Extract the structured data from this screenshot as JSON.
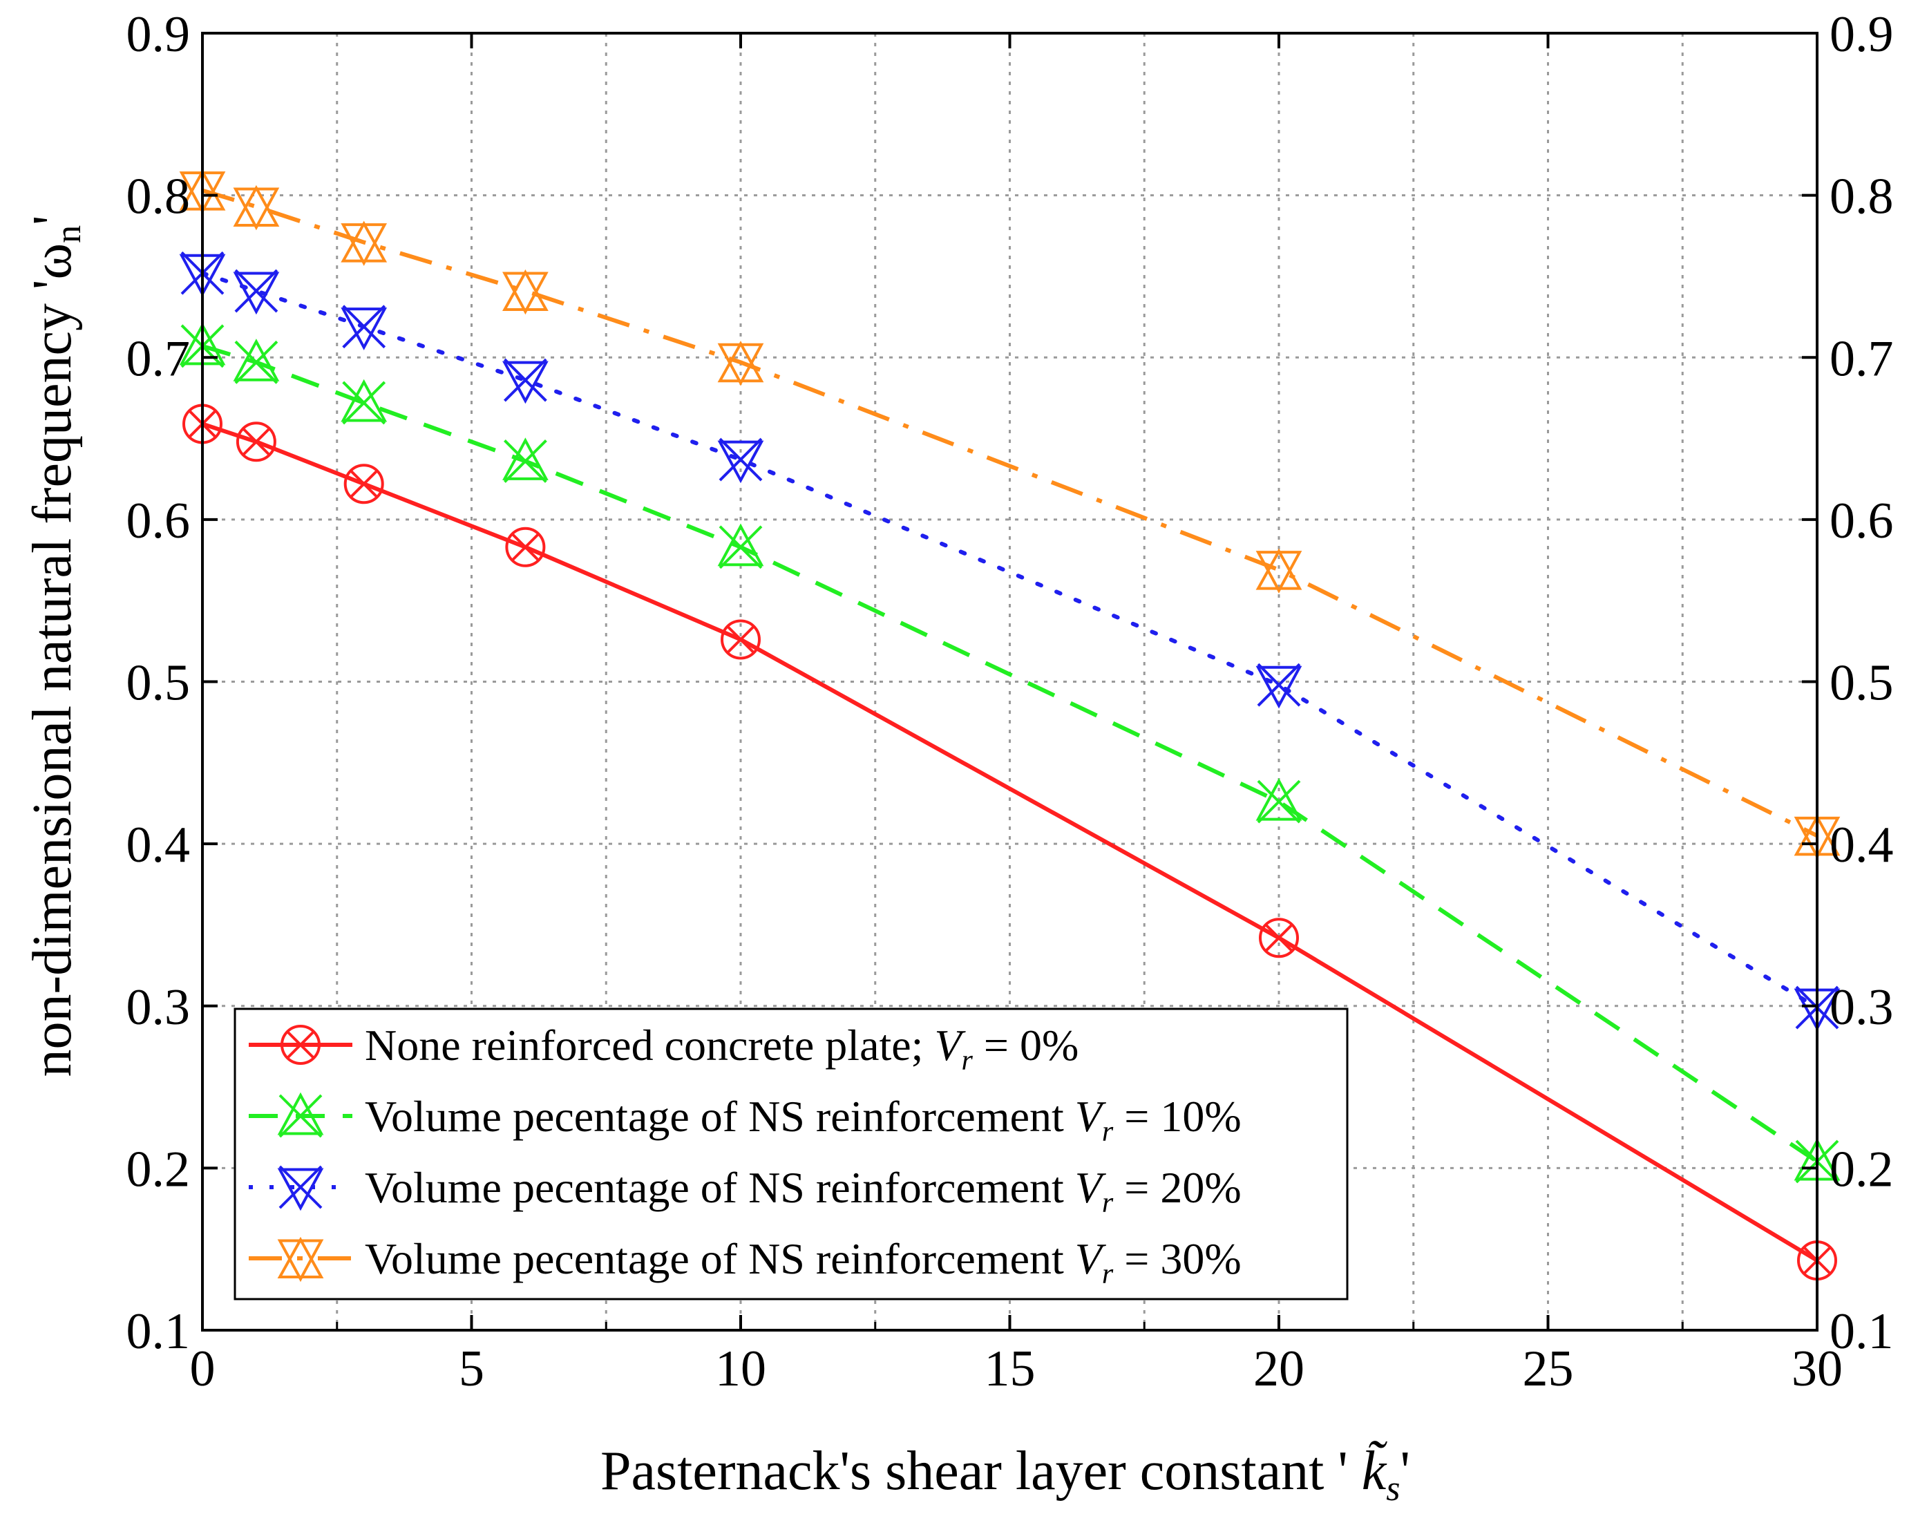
{
  "chart_data": {
    "type": "line",
    "title": "",
    "xlabel": "Pasternack's shear layer constant ' k̃s'",
    "xlabel_parts": {
      "prefix": "Pasternack's shear layer constant ' ",
      "symbol": "k̃",
      "subscript": "s",
      "suffix": "'"
    },
    "ylabel": "non-dimensional natural frequency 'ωn'",
    "ylabel_parts": {
      "prefix": "non-dimensional natural frequency '",
      "symbol": "ω",
      "subscript": "n",
      "suffix": "'"
    },
    "xlim": [
      0,
      30
    ],
    "ylim": [
      0.1,
      0.9
    ],
    "x_ticks": [
      0,
      5,
      10,
      15,
      20,
      25,
      30
    ],
    "x_tick_labels": [
      "0",
      "5",
      "10",
      "15",
      "20",
      "25",
      "30"
    ],
    "y_ticks": [
      0.1,
      0.2,
      0.3,
      0.4,
      0.5,
      0.6,
      0.7,
      0.8,
      0.9
    ],
    "y_tick_labels": [
      "0.1",
      "0.2",
      "0.3",
      "0.4",
      "0.5",
      "0.6",
      "0.7",
      "0.8",
      "0.9"
    ],
    "x_minor_grid": [
      2.5,
      7.5,
      12.5,
      17.5,
      22.5,
      27.5
    ],
    "grid": true,
    "right_axis_mirrored": true,
    "legend_position": "bottom-left",
    "x": [
      0,
      1,
      3,
      6,
      10,
      20,
      30
    ],
    "series": [
      {
        "name": "None reinforced concrete plate; Vr = 0%",
        "name_parts": {
          "prefix": "None reinforced concrete plate; ",
          "var": "V",
          "sub": "r",
          "suffix": " = 0%"
        },
        "values": [
          0.659,
          0.648,
          0.622,
          0.583,
          0.526,
          0.342,
          0.143
        ],
        "color": "#ff2020",
        "line_style": "solid",
        "marker": "circle-x"
      },
      {
        "name": "Volume pecentage of NS reinforcement Vr = 10%",
        "name_parts": {
          "prefix": "Volume pecentage of NS reinforcement ",
          "var": "V",
          "sub": "r",
          "suffix": " = 10%"
        },
        "values": [
          0.707,
          0.697,
          0.672,
          0.636,
          0.583,
          0.426,
          0.204
        ],
        "color": "#22ee22",
        "line_style": "dash",
        "marker": "triangle-up-x"
      },
      {
        "name": "Volume pecentage of NS reinforcement Vr = 20%",
        "name_parts": {
          "prefix": "Volume pecentage of NS reinforcement ",
          "var": "V",
          "sub": "r",
          "suffix": " = 20%"
        },
        "values": [
          0.752,
          0.741,
          0.719,
          0.686,
          0.637,
          0.498,
          0.299
        ],
        "color": "#1f1fee",
        "line_style": "dot",
        "marker": "triangle-down-x"
      },
      {
        "name": "Volume pecentage of NS reinforcement Vr = 30%",
        "name_parts": {
          "prefix": "Volume pecentage of NS reinforcement ",
          "var": "V",
          "sub": "r",
          "suffix": " = 30%"
        },
        "values": [
          0.803,
          0.793,
          0.771,
          0.741,
          0.697,
          0.569,
          0.405
        ],
        "color": "#ff8c1a",
        "line_style": "dashdot",
        "marker": "triangle-down-hourglass"
      }
    ]
  }
}
